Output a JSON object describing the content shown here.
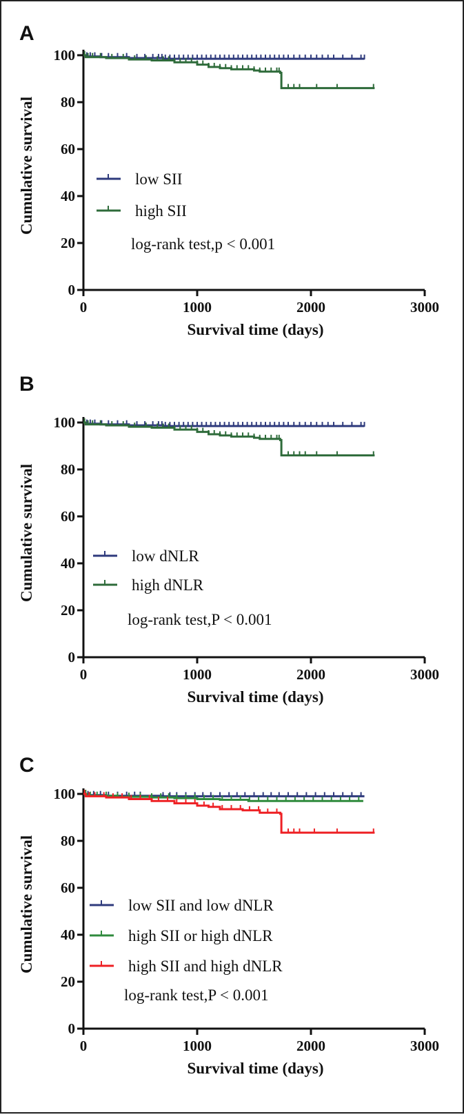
{
  "chart_data": [
    {
      "type": "line",
      "panel_label": "A",
      "xlabel": "Survival time (days)",
      "ylabel": "Cumulative survival",
      "xlim": [
        0,
        3000
      ],
      "ylim": [
        0,
        100
      ],
      "x_ticks": [
        "0",
        "1000",
        "2000",
        "3000"
      ],
      "y_ticks": [
        "0",
        "20",
        "40",
        "60",
        "80",
        "100"
      ],
      "annotation": "log-rank test,p < 0.001",
      "series": [
        {
          "name": "low SII",
          "color": "#2e3a7c",
          "steps": [
            [
              0,
              100
            ],
            [
              30,
              99.5
            ],
            [
              150,
              99.2
            ],
            [
              400,
              98.8
            ],
            [
              700,
              98.5
            ],
            [
              2470,
              98.5
            ]
          ],
          "censor_x": [
            30,
            60,
            100,
            160,
            220,
            300,
            380,
            470,
            540,
            610,
            660,
            690,
            720,
            760,
            800,
            840,
            880,
            920,
            960,
            1000,
            1040,
            1080,
            1120,
            1160,
            1200,
            1240,
            1280,
            1320,
            1360,
            1400,
            1440,
            1480,
            1520,
            1560,
            1600,
            1640,
            1680,
            1720,
            1760,
            1800,
            1850,
            1900,
            1950,
            2000,
            2050,
            2100,
            2150,
            2200,
            2280,
            2360,
            2440,
            2470
          ]
        },
        {
          "name": "high SII",
          "color": "#2e6b3a",
          "steps": [
            [
              0,
              100
            ],
            [
              20,
              99.2
            ],
            [
              200,
              98.8
            ],
            [
              400,
              98.2
            ],
            [
              600,
              97.8
            ],
            [
              800,
              97
            ],
            [
              1000,
              96
            ],
            [
              1100,
              95
            ],
            [
              1200,
              94.5
            ],
            [
              1300,
              94
            ],
            [
              1500,
              93.5
            ],
            [
              1550,
              93
            ],
            [
              1730,
              92.5
            ],
            [
              1740,
              86
            ],
            [
              2560,
              86
            ]
          ],
          "censor_x": [
            10,
            40,
            80,
            150,
            250,
            350,
            450,
            550,
            650,
            700,
            750,
            800,
            850,
            900,
            950,
            1000,
            1050,
            1100,
            1150,
            1200,
            1250,
            1300,
            1350,
            1400,
            1450,
            1500,
            1550,
            1600,
            1650,
            1700,
            1720,
            1800,
            1850,
            1900,
            2050,
            2230,
            2550
          ]
        }
      ]
    },
    {
      "type": "line",
      "panel_label": "B",
      "xlabel": "Survival time (days)",
      "ylabel": "Cumulative survival",
      "xlim": [
        0,
        3000
      ],
      "ylim": [
        0,
        100
      ],
      "x_ticks": [
        "0",
        "1000",
        "2000",
        "3000"
      ],
      "y_ticks": [
        "0",
        "20",
        "40",
        "60",
        "80",
        "100"
      ],
      "annotation": "log-rank test,P < 0.001",
      "series": [
        {
          "name": "low dNLR",
          "color": "#2e3a7c",
          "steps": [
            [
              0,
              100
            ],
            [
              30,
              99.5
            ],
            [
              150,
              99.2
            ],
            [
              400,
              98.8
            ],
            [
              700,
              98.5
            ],
            [
              2470,
              98.5
            ]
          ],
          "censor_x": [
            30,
            60,
            100,
            160,
            220,
            300,
            380,
            470,
            540,
            610,
            660,
            690,
            720,
            760,
            800,
            840,
            880,
            920,
            960,
            1000,
            1040,
            1080,
            1120,
            1160,
            1200,
            1240,
            1280,
            1320,
            1360,
            1400,
            1440,
            1480,
            1520,
            1560,
            1600,
            1640,
            1680,
            1720,
            1760,
            1800,
            1850,
            1900,
            1950,
            2000,
            2050,
            2100,
            2150,
            2200,
            2280,
            2360,
            2440,
            2470
          ]
        },
        {
          "name": "high dNLR",
          "color": "#2e6b3a",
          "steps": [
            [
              0,
              100
            ],
            [
              20,
              99.2
            ],
            [
              200,
              98.8
            ],
            [
              400,
              98.2
            ],
            [
              600,
              97.8
            ],
            [
              800,
              97
            ],
            [
              1000,
              96
            ],
            [
              1100,
              95
            ],
            [
              1200,
              94.5
            ],
            [
              1300,
              94
            ],
            [
              1500,
              93.5
            ],
            [
              1550,
              93
            ],
            [
              1730,
              92.5
            ],
            [
              1740,
              86
            ],
            [
              2560,
              86
            ]
          ],
          "censor_x": [
            10,
            40,
            80,
            150,
            250,
            350,
            450,
            550,
            650,
            700,
            750,
            800,
            850,
            900,
            950,
            1000,
            1050,
            1100,
            1150,
            1200,
            1250,
            1300,
            1350,
            1400,
            1450,
            1500,
            1550,
            1600,
            1650,
            1700,
            1720,
            1800,
            1850,
            1900,
            1950,
            2050,
            2230,
            2550
          ]
        }
      ]
    },
    {
      "type": "line",
      "panel_label": "C",
      "xlabel": "Survival time (days)",
      "ylabel": "Cumulative survival",
      "xlim": [
        0,
        3000
      ],
      "ylim": [
        0,
        100
      ],
      "x_ticks": [
        "0",
        "1000",
        "2000",
        "3000"
      ],
      "y_ticks": [
        "0",
        "20",
        "40",
        "60",
        "80",
        "100"
      ],
      "annotation": "log-rank test,P < 0.001",
      "series": [
        {
          "name": "low SII and low dNLR",
          "color": "#2e3a7c",
          "steps": [
            [
              0,
              100
            ],
            [
              30,
              99.5
            ],
            [
              200,
              99.2
            ],
            [
              700,
              99
            ],
            [
              2470,
              99
            ]
          ],
          "censor_x": [
            40,
            90,
            150,
            220,
            300,
            380,
            450,
            500,
            700,
            760,
            820,
            900,
            980,
            1050,
            1120,
            1200,
            1280,
            1350,
            1420,
            1500,
            1580,
            1650,
            1720,
            1800,
            1880,
            1960,
            2040,
            2120,
            2200,
            2280,
            2360,
            2440
          ]
        },
        {
          "name": "high SII or high dNLR",
          "color": "#2f8a3c",
          "steps": [
            [
              0,
              100
            ],
            [
              30,
              99.2
            ],
            [
              300,
              98.8
            ],
            [
              600,
              98.5
            ],
            [
              800,
              98.2
            ],
            [
              1000,
              97.8
            ],
            [
              1200,
              97.5
            ],
            [
              1450,
              97
            ],
            [
              2460,
              97
            ]
          ],
          "censor_x": [
            20,
            60,
            120,
            200,
            300,
            400,
            500,
            600,
            680,
            750,
            820,
            900,
            980,
            1060,
            1140,
            1220,
            1300,
            1380,
            1460,
            1540,
            1620,
            1700,
            1780,
            1860,
            1940,
            2020,
            2100,
            2180,
            2260,
            2340,
            2420
          ]
        },
        {
          "name": "high SII and high dNLR",
          "color": "#ee2024",
          "steps": [
            [
              0,
              100
            ],
            [
              20,
              99
            ],
            [
              200,
              98.5
            ],
            [
              400,
              97.8
            ],
            [
              600,
              97
            ],
            [
              800,
              96
            ],
            [
              1000,
              95
            ],
            [
              1100,
              94.5
            ],
            [
              1200,
              93.5
            ],
            [
              1400,
              93
            ],
            [
              1550,
              92
            ],
            [
              1730,
              91.5
            ],
            [
              1740,
              83.5
            ],
            [
              2560,
              83.5
            ]
          ],
          "censor_x": [
            10,
            50,
            100,
            180,
            260,
            340,
            420,
            500,
            580,
            660,
            740,
            820,
            900,
            980,
            1060,
            1140,
            1220,
            1300,
            1380,
            1460,
            1540,
            1620,
            1700,
            1800,
            1850,
            1900,
            2030,
            2230,
            2550
          ]
        }
      ]
    }
  ]
}
